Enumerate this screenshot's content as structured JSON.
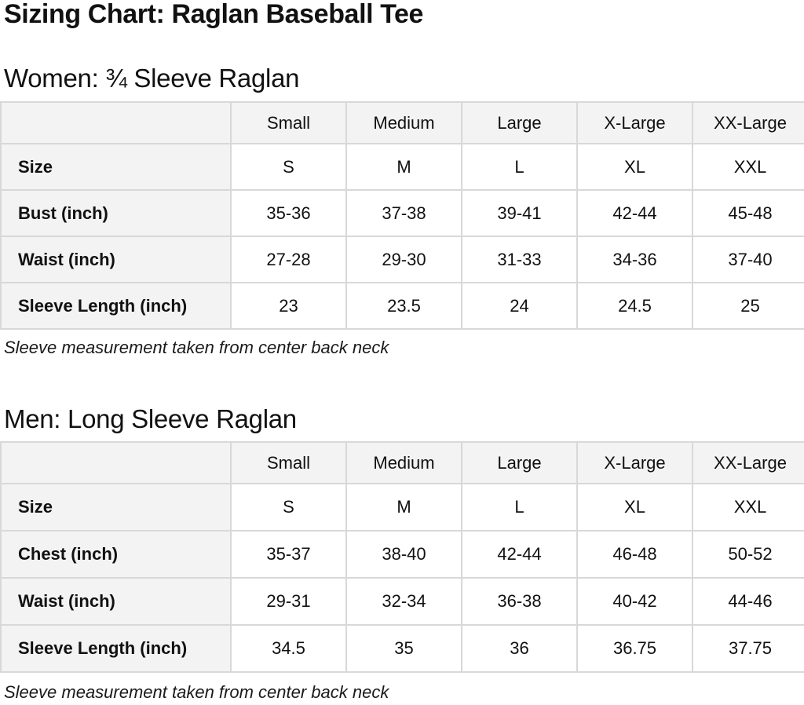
{
  "title": "Sizing Chart: Raglan Baseball Tee",
  "colors": {
    "header_background": "#f3f3f3",
    "table_border": "#d8d8d8",
    "text": "#111111"
  },
  "sections": [
    {
      "heading": "Women: ¾ Sleeve Raglan",
      "columns": [
        "",
        "Small",
        "Medium",
        "Large",
        "X-Large",
        "XX-Large"
      ],
      "rows": [
        {
          "label": "Size",
          "values": [
            "S",
            "M",
            "L",
            "XL",
            "XXL"
          ]
        },
        {
          "label": "Bust (inch)",
          "values": [
            "35-36",
            "37-38",
            "39-41",
            "42-44",
            "45-48"
          ]
        },
        {
          "label": "Waist (inch)",
          "values": [
            "27-28",
            "29-30",
            "31-33",
            "34-36",
            "37-40"
          ]
        },
        {
          "label": "Sleeve Length (inch)",
          "values": [
            "23",
            "23.5",
            "24",
            "24.5",
            "25"
          ]
        }
      ],
      "note": "Sleeve measurement taken from center back neck"
    },
    {
      "heading": "Men: Long Sleeve Raglan",
      "columns": [
        "",
        "Small",
        "Medium",
        "Large",
        "X-Large",
        "XX-Large"
      ],
      "rows": [
        {
          "label": "Size",
          "values": [
            "S",
            "M",
            "L",
            "XL",
            "XXL"
          ]
        },
        {
          "label": "Chest (inch)",
          "values": [
            "35-37",
            "38-40",
            "42-44",
            "46-48",
            "50-52"
          ]
        },
        {
          "label": "Waist (inch)",
          "values": [
            "29-31",
            "32-34",
            "36-38",
            "40-42",
            "44-46"
          ]
        },
        {
          "label": "Sleeve Length (inch)",
          "values": [
            "34.5",
            "35",
            "36",
            "36.75",
            "37.75"
          ]
        }
      ],
      "note": "Sleeve measurement taken from center back neck"
    }
  ]
}
